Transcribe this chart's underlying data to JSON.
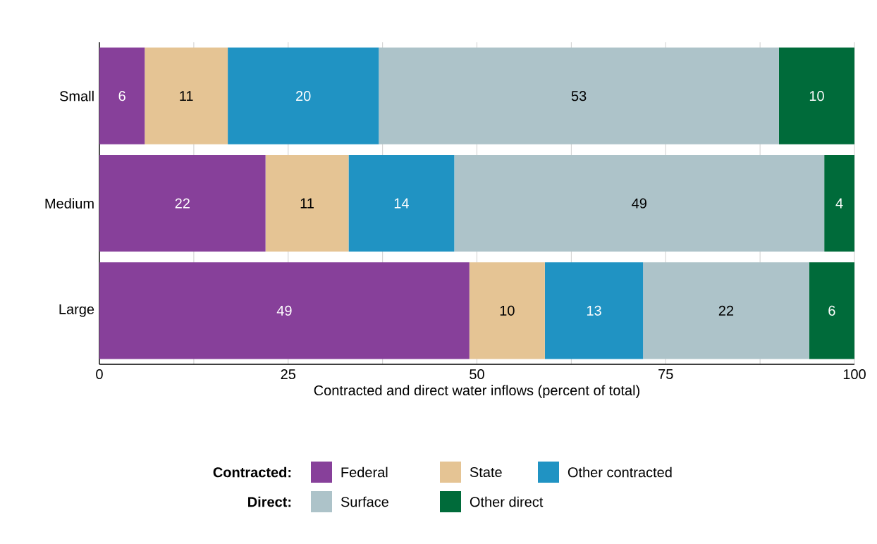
{
  "chart_data": {
    "type": "bar",
    "orientation": "horizontal",
    "stacked": true,
    "data_labels": true,
    "grid": "x",
    "legend": "bottom",
    "xlabel": "Contracted and direct water inflows (percent of total)",
    "categories": [
      "Small",
      "Medium",
      "Large"
    ],
    "xlim": [
      0,
      100
    ],
    "xticks": [
      0,
      {
        "value": 12.5,
        "label": null
      },
      25,
      {
        "value": 37.5,
        "label": null
      },
      50,
      {
        "value": 62.5,
        "label": null
      },
      75,
      {
        "value": 87.5,
        "label": null
      },
      100
    ],
    "annotations": [
      "**Contracted:**",
      "**Direct:**"
    ],
    "series": [
      {
        "name": "Federal",
        "color": "#87409a",
        "values": [
          6,
          22,
          49
        ]
      },
      {
        "name": "State",
        "color": "#e5c494",
        "values": [
          11,
          11,
          10
        ]
      },
      {
        "name": "Other contracted",
        "color": "#2093c3",
        "values": [
          20,
          14,
          13
        ]
      },
      {
        "name": "Surface",
        "color": "#adc3c9",
        "values": [
          53,
          49,
          22
        ]
      },
      {
        "name": "Other direct",
        "color": "#006b3a",
        "values": [
          10,
          4,
          6
        ]
      }
    ]
  }
}
